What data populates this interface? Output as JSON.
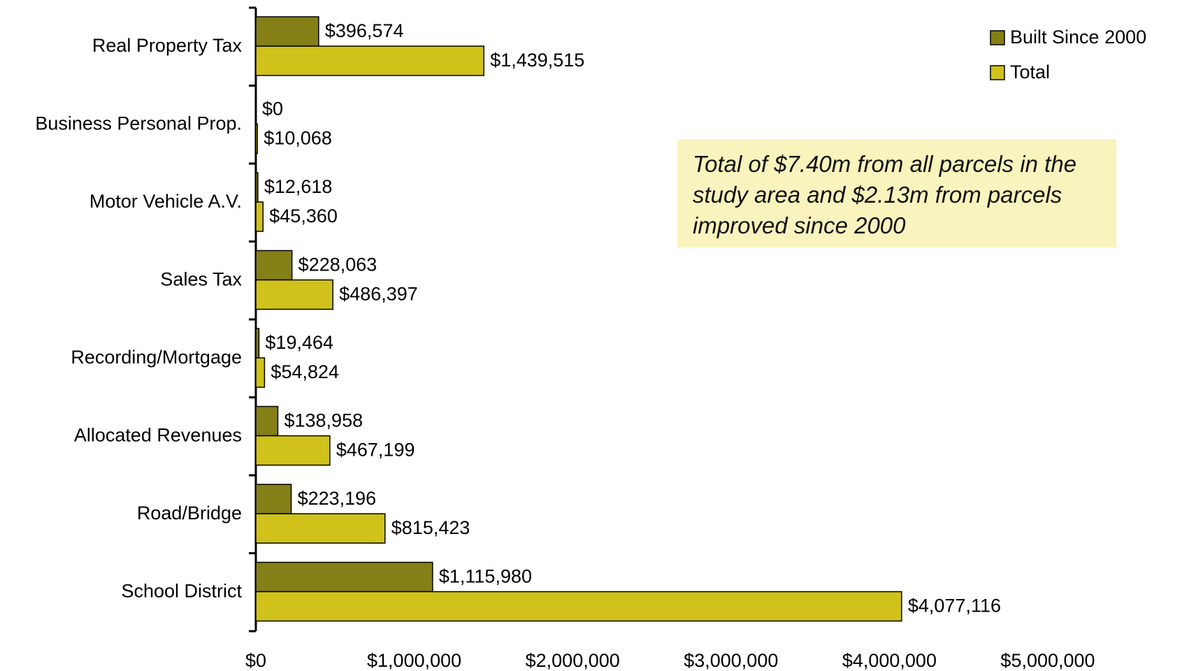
{
  "chart_data": {
    "type": "barh",
    "categories": [
      "Real Property Tax",
      "Business Personal Prop.",
      "Motor Vehicle A.V.",
      "Sales Tax",
      "Recording/Mortgage",
      "Allocated Revenues",
      "Road/Bridge",
      "School District"
    ],
    "series": [
      {
        "name": "Built Since 2000",
        "color": "#857f18",
        "values": [
          396574,
          0,
          12618,
          228063,
          19464,
          138958,
          223196,
          1115980
        ],
        "value_labels": [
          "$396,574",
          "$0",
          "$12,618",
          "$228,063",
          "$19,464",
          "$138,958",
          "$223,196",
          "$1,115,980"
        ]
      },
      {
        "name": "Total",
        "color": "#d0c21a",
        "values": [
          1439515,
          10068,
          45360,
          486397,
          54824,
          467199,
          815423,
          4077116
        ],
        "value_labels": [
          "$1,439,515",
          "$10,068",
          "$45,360",
          "$486,397",
          "$54,824",
          "$467,199",
          "$815,423",
          "$4,077,116"
        ]
      }
    ],
    "xlim": [
      0,
      5000000
    ],
    "xticks": [
      {
        "value": 0,
        "label": "$0"
      },
      {
        "value": 1000000,
        "label": "$1,000,000"
      },
      {
        "value": 2000000,
        "label": "$2,000,000"
      },
      {
        "value": 3000000,
        "label": "$3,000,000"
      },
      {
        "value": 4000000,
        "label": "$4,000,000"
      },
      {
        "value": 5000000,
        "label": "$5,000,000"
      }
    ],
    "legend": "top-right",
    "annotation": "Total of $7.40m from all parcels in the study area and $2.13m from parcels improved since 2000"
  }
}
